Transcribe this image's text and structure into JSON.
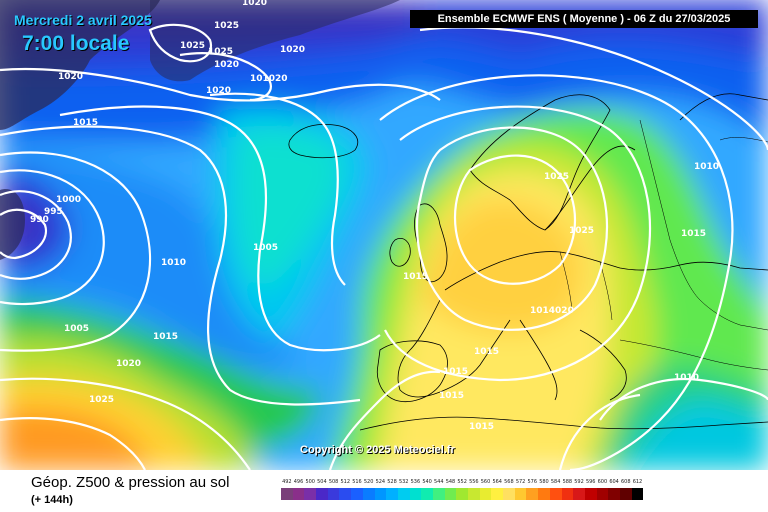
{
  "header": {
    "date": "Mercredi 2 avril 2025",
    "time": "7:00 locale",
    "model": "Ensemble ECMWF ENS  ( Moyenne )  -  06 Z du 27/03/2025"
  },
  "map": {
    "copyright": "Copyright © 2025 Meteociel.fr",
    "isobar_labels": [
      "1020",
      "1025",
      "1025",
      "1025",
      "1020",
      "1020",
      "1020",
      "1020",
      "101020",
      "1015",
      "1000",
      "995",
      "990",
      "1005",
      "1010",
      "1005",
      "1015",
      "1020",
      "1025",
      "1010",
      "1025",
      "1025",
      "1015",
      "1015",
      "1014020",
      "1015",
      "1015",
      "1015",
      "1015",
      "1010"
    ]
  },
  "footer": {
    "title": "Géop. Z500 & pression au sol",
    "subtitle": "(+ 144h)"
  },
  "legend": {
    "values": [
      "492",
      "496",
      "500",
      "504",
      "508",
      "512",
      "516",
      "520",
      "524",
      "528",
      "532",
      "536",
      "540",
      "544",
      "548",
      "552",
      "556",
      "560",
      "564",
      "568",
      "572",
      "576",
      "580",
      "584",
      "588",
      "592",
      "596",
      "600",
      "604",
      "608",
      "612"
    ],
    "colors": [
      "#7a3f7a",
      "#8a2f8a",
      "#7a2fa8",
      "#4a28c8",
      "#3a3adc",
      "#2a4cf0",
      "#1a60ff",
      "#0a7cff",
      "#0096ff",
      "#00b0ff",
      "#00ccf0",
      "#00e0d0",
      "#10ecb0",
      "#40f080",
      "#70ec50",
      "#a0e830",
      "#c8e830",
      "#e8ec30",
      "#fff040",
      "#ffe060",
      "#ffc830",
      "#ffa020",
      "#ff7a10",
      "#ff5010",
      "#f03010",
      "#d81818",
      "#c00000",
      "#a00000",
      "#800000",
      "#600000",
      "#000000"
    ]
  },
  "colors": {
    "isobar": "#ffffff",
    "coast": "#000000",
    "land_dark": "#2a2a5a"
  }
}
